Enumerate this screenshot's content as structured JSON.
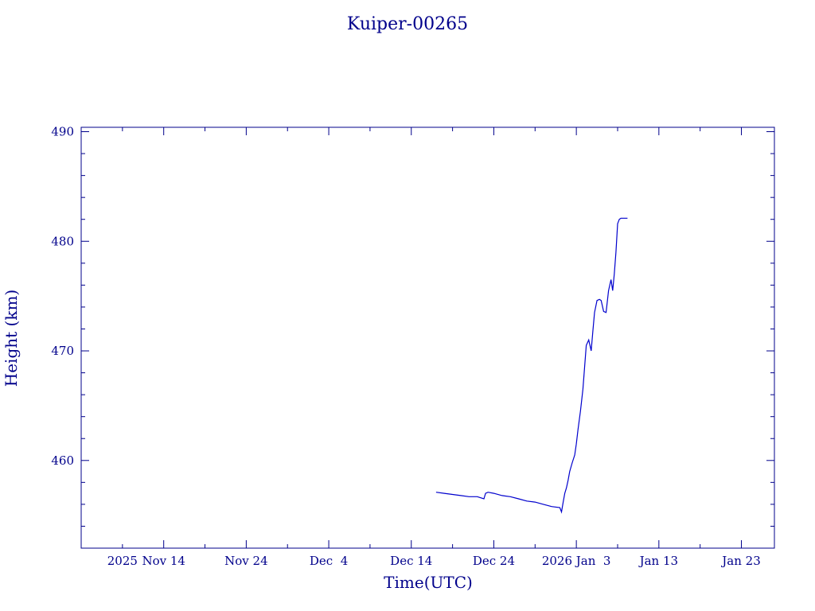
{
  "chart_data": {
    "type": "line",
    "title": "Kuiper-00265",
    "xlabel": "Time(UTC)",
    "ylabel": "Height (km)",
    "x_axis": {
      "range": [
        "2025-11-04",
        "2026-01-27"
      ],
      "tick_labels": [
        {
          "date": "2025-11-09",
          "label": "2025"
        },
        {
          "date": "2025-11-14",
          "label": "Nov 14"
        },
        {
          "date": "2025-11-24",
          "label": "Nov 24"
        },
        {
          "date": "2025-12-04",
          "label": "Dec  4"
        },
        {
          "date": "2025-12-14",
          "label": "Dec 14"
        },
        {
          "date": "2025-12-24",
          "label": "Dec 24"
        },
        {
          "date": "2026-01-03",
          "label": "2026 Jan  3"
        },
        {
          "date": "2026-01-13",
          "label": "Jan 13"
        },
        {
          "date": "2026-01-23",
          "label": "Jan 23"
        }
      ]
    },
    "y_axis": {
      "range": [
        452,
        490.4
      ],
      "ticks": [
        460,
        470,
        480,
        490
      ],
      "tick_labels": [
        "460",
        "470",
        "480",
        "490"
      ]
    },
    "grid": false,
    "colors": {
      "axes": "#00008b",
      "line": "#0000cd"
    },
    "series": [
      {
        "x": [
          "2025-12-17.0",
          "2025-12-18.0",
          "2025-12-19.0",
          "2025-12-20.0",
          "2025-12-21.0",
          "2025-12-22.0",
          "2025-12-22.8",
          "2025-12-23.0",
          "2025-12-23.3",
          "2025-12-24.0",
          "2025-12-25.0",
          "2025-12-26.0",
          "2025-12-27.0",
          "2025-12-28.0",
          "2025-12-29.0",
          "2025-12-30.0",
          "2025-12-31.0",
          "2026-01-01.0",
          "2026-01-01.2",
          "2026-01-01.4",
          "2026-01-01.6",
          "2026-01-01.8",
          "2026-01-02.0",
          "2026-01-02.2",
          "2026-01-02.5",
          "2026-01-02.8",
          "2026-01-03.0",
          "2026-01-03.2",
          "2026-01-03.5",
          "2026-01-03.8",
          "2026-01-04.0",
          "2026-01-04.2",
          "2026-01-04.5",
          "2026-01-04.8",
          "2026-01-05.0",
          "2026-01-05.2",
          "2026-01-05.5",
          "2026-01-05.8",
          "2026-01-06.0",
          "2026-01-06.3",
          "2026-01-06.6",
          "2026-01-06.9",
          "2026-01-07.2",
          "2026-01-07.4",
          "2026-01-07.6",
          "2026-01-07.8",
          "2026-01-08.0",
          "2026-01-08.2",
          "2026-01-08.4",
          "2026-01-08.6",
          "2026-01-08.8",
          "2026-01-09.0",
          "2026-01-09.2"
        ],
        "y": [
          457.1,
          457.0,
          456.9,
          456.8,
          456.7,
          456.7,
          456.5,
          457.0,
          457.1,
          457.0,
          456.8,
          456.7,
          456.5,
          456.3,
          456.2,
          456.0,
          455.8,
          455.7,
          455.3,
          456.2,
          457.0,
          457.5,
          458.2,
          459.0,
          459.8,
          460.5,
          461.5,
          462.8,
          464.5,
          466.5,
          468.5,
          470.5,
          471.0,
          470.0,
          471.8,
          473.5,
          474.6,
          474.7,
          474.6,
          473.6,
          473.5,
          475.5,
          476.5,
          475.5,
          477.0,
          479.0,
          481.6,
          482.0,
          482.1,
          482.1,
          482.1,
          482.1,
          482.1
        ]
      }
    ]
  }
}
